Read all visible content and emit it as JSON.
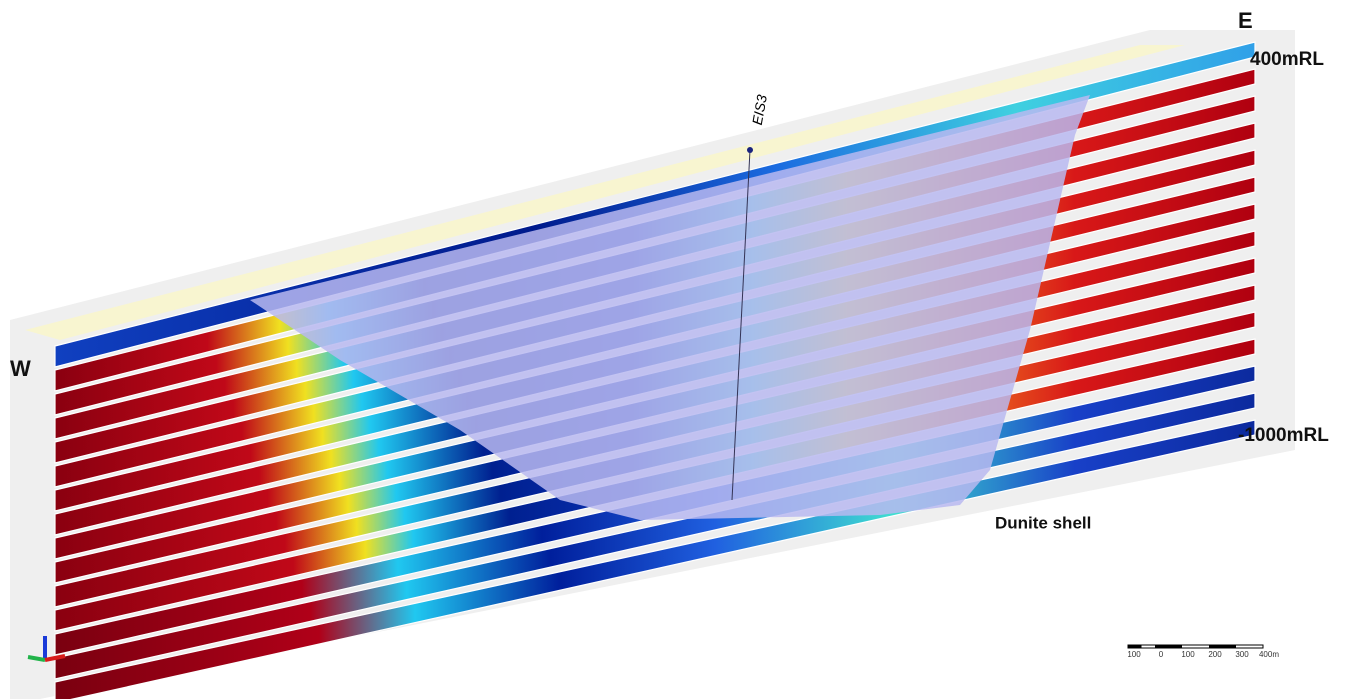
{
  "labels": {
    "east": "E",
    "top_level": "400mRL",
    "west": "W",
    "bottom_level": "-1000mRL",
    "drillhole": "EIS3",
    "shell": "Dunite shell"
  },
  "scale_bar": {
    "ticks": [
      "100",
      "0",
      "100",
      "200",
      "300",
      "400m"
    ]
  }
}
